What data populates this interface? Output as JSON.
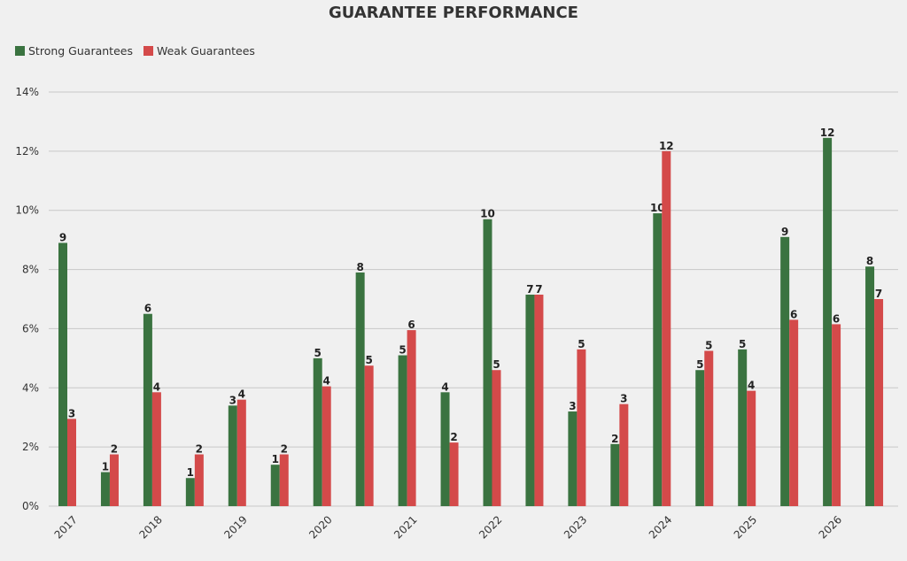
{
  "chart_data": {
    "type": "bar",
    "title": "GUARANTEE PERFORMANCE",
    "xlabel": "",
    "ylabel": "",
    "ylim": [
      0,
      14
    ],
    "y_ticks": [
      "0%",
      "2%",
      "4%",
      "6%",
      "8%",
      "10%",
      "12%",
      "14%"
    ],
    "y_tick_values": [
      0,
      2,
      4,
      6,
      8,
      10,
      12,
      14
    ],
    "grid": true,
    "legend_position": "top-left",
    "x_tick_labels": [
      "2017",
      "2018",
      "2019",
      "2020",
      "2021",
      "2022",
      "2023",
      "2024",
      "2025",
      "2026"
    ],
    "x_tick_group_index": [
      0,
      2,
      4,
      6,
      8,
      10,
      12,
      14,
      16,
      18
    ],
    "group_count": 20,
    "series": [
      {
        "name": "Strong Guarantees",
        "color": "#3a7340",
        "values": [
          8.9,
          1.15,
          6.5,
          0.95,
          3.4,
          1.4,
          5.0,
          7.9,
          5.1,
          3.85,
          9.7,
          7.15,
          3.2,
          2.1,
          9.9,
          4.6,
          5.3,
          9.1,
          12.45,
          8.1
        ],
        "labels": [
          "9",
          "1",
          "6",
          "1",
          "3",
          "1",
          "5",
          "8",
          "5",
          "4",
          "10",
          "7",
          "3",
          "2",
          "10",
          "5",
          "5",
          "9",
          "12",
          "8"
        ]
      },
      {
        "name": "Weak Guarantees",
        "color": "#d44a4a",
        "values": [
          2.95,
          1.75,
          3.85,
          1.75,
          3.6,
          1.75,
          4.05,
          4.75,
          5.95,
          2.15,
          4.6,
          7.15,
          5.3,
          3.45,
          12.0,
          5.25,
          3.9,
          6.3,
          6.15,
          7.0
        ],
        "labels": [
          "3",
          "2",
          "4",
          "2",
          "4",
          "2",
          "4",
          "5",
          "6",
          "2",
          "5",
          "7",
          "5",
          "3",
          "12",
          "5",
          "4",
          "6",
          "6",
          "7"
        ]
      }
    ]
  }
}
